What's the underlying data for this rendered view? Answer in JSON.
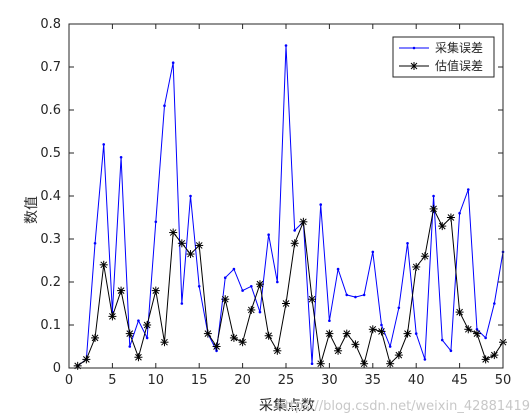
{
  "chart_data": {
    "type": "line",
    "title": "",
    "xlabel": "采集点数",
    "ylabel": "数值",
    "xlim": [
      0,
      50
    ],
    "ylim": [
      0,
      0.8
    ],
    "xticks": [
      0,
      5,
      10,
      15,
      20,
      25,
      30,
      35,
      40,
      45,
      50
    ],
    "yticks": [
      0,
      0.1,
      0.2,
      0.3,
      0.4,
      0.5,
      0.6,
      0.7,
      0.8
    ],
    "grid": false,
    "legend_position": "top-right",
    "x": [
      1,
      2,
      3,
      4,
      5,
      6,
      7,
      8,
      9,
      10,
      11,
      12,
      13,
      14,
      15,
      16,
      17,
      18,
      19,
      20,
      21,
      22,
      23,
      24,
      25,
      26,
      27,
      28,
      29,
      30,
      31,
      32,
      33,
      34,
      35,
      36,
      37,
      38,
      39,
      40,
      41,
      42,
      43,
      44,
      45,
      46,
      47,
      48,
      49,
      50
    ],
    "series": [
      {
        "name": "采集误差",
        "color": "#0000ff",
        "marker": "dot",
        "values": [
          0.005,
          0.02,
          0.29,
          0.52,
          0.13,
          0.49,
          0.05,
          0.11,
          0.07,
          0.34,
          0.61,
          0.71,
          0.15,
          0.4,
          0.19,
          0.08,
          0.04,
          0.21,
          0.23,
          0.18,
          0.19,
          0.13,
          0.31,
          0.2,
          0.75,
          0.32,
          0.34,
          0.01,
          0.38,
          0.11,
          0.23,
          0.17,
          0.165,
          0.17,
          0.27,
          0.1,
          0.05,
          0.14,
          0.29,
          0.08,
          0.02,
          0.4,
          0.065,
          0.04,
          0.36,
          0.415,
          0.09,
          0.07,
          0.15,
          0.27
        ]
      },
      {
        "name": "估值误差",
        "color": "#000000",
        "marker": "asterisk",
        "values": [
          0.005,
          0.02,
          0.07,
          0.24,
          0.12,
          0.18,
          0.08,
          0.025,
          0.1,
          0.18,
          0.06,
          0.315,
          0.29,
          0.265,
          0.285,
          0.08,
          0.05,
          0.16,
          0.07,
          0.06,
          0.135,
          0.195,
          0.075,
          0.04,
          0.15,
          0.29,
          0.34,
          0.16,
          0.01,
          0.08,
          0.04,
          0.08,
          0.055,
          0.01,
          0.09,
          0.085,
          0.01,
          0.03,
          0.08,
          0.235,
          0.26,
          0.37,
          0.33,
          0.35,
          0.13,
          0.09,
          0.08,
          0.02,
          0.03,
          0.06
        ]
      }
    ]
  },
  "watermark": "https://blog.csdn.net/weixin_42881419"
}
